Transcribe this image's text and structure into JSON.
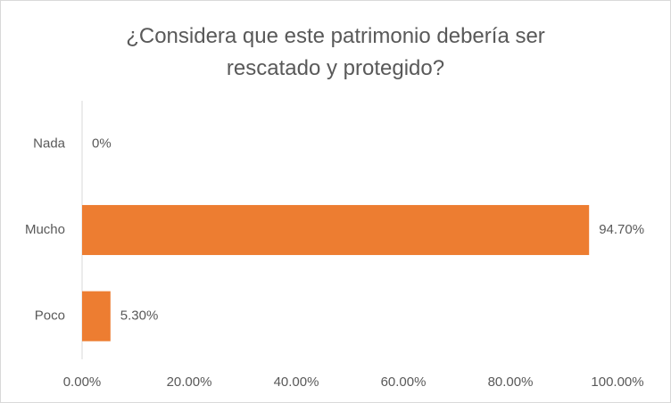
{
  "chart_data": {
    "type": "bar",
    "orientation": "horizontal",
    "title_lines": [
      "¿Considera  que este patrimonio debería ser",
      "rescatado y protegido?"
    ],
    "categories": [
      "Nada",
      "Mucho",
      "Poco"
    ],
    "values": [
      0,
      94.7,
      5.3
    ],
    "value_labels": [
      "0%",
      "94.70%",
      "5.30%"
    ],
    "xlim": [
      0,
      100
    ],
    "x_ticks": [
      0,
      20,
      40,
      60,
      80,
      100
    ],
    "x_tick_labels": [
      "0.00%",
      "20.00%",
      "40.00%",
      "60.00%",
      "80.00%",
      "100.00%"
    ],
    "bar_color": "#ED7D31",
    "axis_color": "#d9d9d9",
    "text_color": "#595959",
    "grid": false,
    "legend": "none"
  }
}
